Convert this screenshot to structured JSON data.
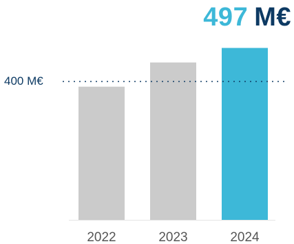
{
  "headline": {
    "value": "497",
    "unit": "M€"
  },
  "colors": {
    "accent": "#3db8d8",
    "title_dark": "#0d3a63",
    "bar_gray": "#cbcbcb",
    "tick_text": "#555555",
    "reference_line": "#0d3a63"
  },
  "chart_data": {
    "type": "bar",
    "categories": [
      "2022",
      "2023",
      "2024"
    ],
    "values": [
      385,
      455,
      497
    ],
    "highlight_index": 2,
    "reference_line": {
      "value": 400,
      "label": "400 M€",
      "style": "dotted"
    },
    "ylim": [
      0,
      520
    ],
    "grid": false,
    "title": "",
    "xlabel": "",
    "ylabel": ""
  }
}
